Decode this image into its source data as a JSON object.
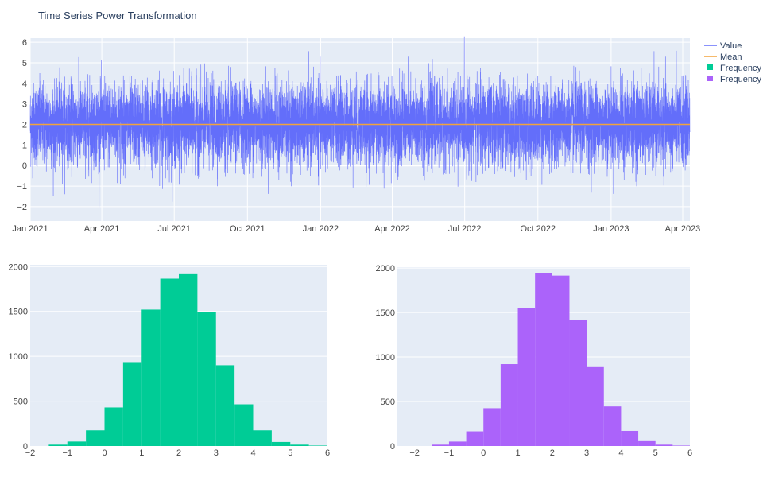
{
  "chart_data": [
    {
      "type": "line",
      "title": "Time Series Power Transformation",
      "x_range": [
        "2021-01-01",
        "2023-04-10"
      ],
      "x_tick_labels": [
        "Jan 2021",
        "Apr 2021",
        "Jul 2021",
        "Oct 2021",
        "Jan 2022",
        "Apr 2022",
        "Jul 2022",
        "Oct 2022",
        "Jan 2023",
        "Apr 2023"
      ],
      "x_ticks": [
        "2021-01-01",
        "2021-04-01",
        "2021-07-01",
        "2021-10-01",
        "2022-01-01",
        "2022-04-01",
        "2022-07-01",
        "2022-10-01",
        "2023-01-01",
        "2023-04-01"
      ],
      "ylim": [
        -2.7,
        6.2
      ],
      "y_ticks": [
        -2,
        -1,
        0,
        1,
        2,
        3,
        4,
        5,
        6
      ],
      "grid": true,
      "series": [
        {
          "name": "Value",
          "color": "#636efa",
          "approx_points": 10000,
          "mean": 2.0,
          "std": 1.0
        },
        {
          "name": "Mean",
          "color": "#f2a33a",
          "value": 2.0
        }
      ]
    },
    {
      "type": "bar",
      "name": "Frequency",
      "color": "#00cc96",
      "bin_starts": [
        -1.5,
        -1,
        -0.5,
        0,
        0.5,
        1,
        1.5,
        2,
        2.5,
        3,
        3.5,
        4,
        4.5,
        5,
        5.5
      ],
      "bin_width": 0.5,
      "values": [
        15,
        50,
        175,
        430,
        935,
        1520,
        1865,
        1915,
        1490,
        900,
        465,
        175,
        45,
        15,
        5
      ],
      "xlim": [
        -2,
        6
      ],
      "x_ticks": [
        -2,
        -1,
        0,
        1,
        2,
        3,
        4,
        5,
        6
      ],
      "ylim": [
        0,
        2020
      ],
      "y_ticks": [
        0,
        500,
        1000,
        1500,
        2000
      ],
      "grid": true
    },
    {
      "type": "bar",
      "name": "Frequency",
      "color": "#ab63fa",
      "bin_starts": [
        -1.5,
        -1,
        -0.5,
        0,
        0.5,
        1,
        1.5,
        2,
        2.5,
        3,
        3.5,
        4,
        4.5,
        5,
        5.5
      ],
      "bin_width": 0.5,
      "values": [
        15,
        50,
        165,
        425,
        920,
        1550,
        1940,
        1915,
        1415,
        895,
        445,
        170,
        55,
        15,
        5
      ],
      "xlim": [
        -2.5,
        6
      ],
      "x_ticks": [
        -2,
        -1,
        0,
        1,
        2,
        3,
        4,
        5,
        6
      ],
      "ylim": [
        0,
        2010
      ],
      "y_ticks": [
        0,
        500,
        1000,
        1500,
        2000
      ],
      "grid": true
    }
  ],
  "legend": {
    "placement": "top-right",
    "items": [
      {
        "label": "Value",
        "color": "#636efa",
        "kind": "line"
      },
      {
        "label": "Mean",
        "color": "#f2a33a",
        "kind": "line"
      },
      {
        "label": "Frequency",
        "color": "#00cc96",
        "kind": "box"
      },
      {
        "label": "Frequency",
        "color": "#ab63fa",
        "kind": "box"
      }
    ]
  },
  "plot_bg": "#e5ecf6"
}
